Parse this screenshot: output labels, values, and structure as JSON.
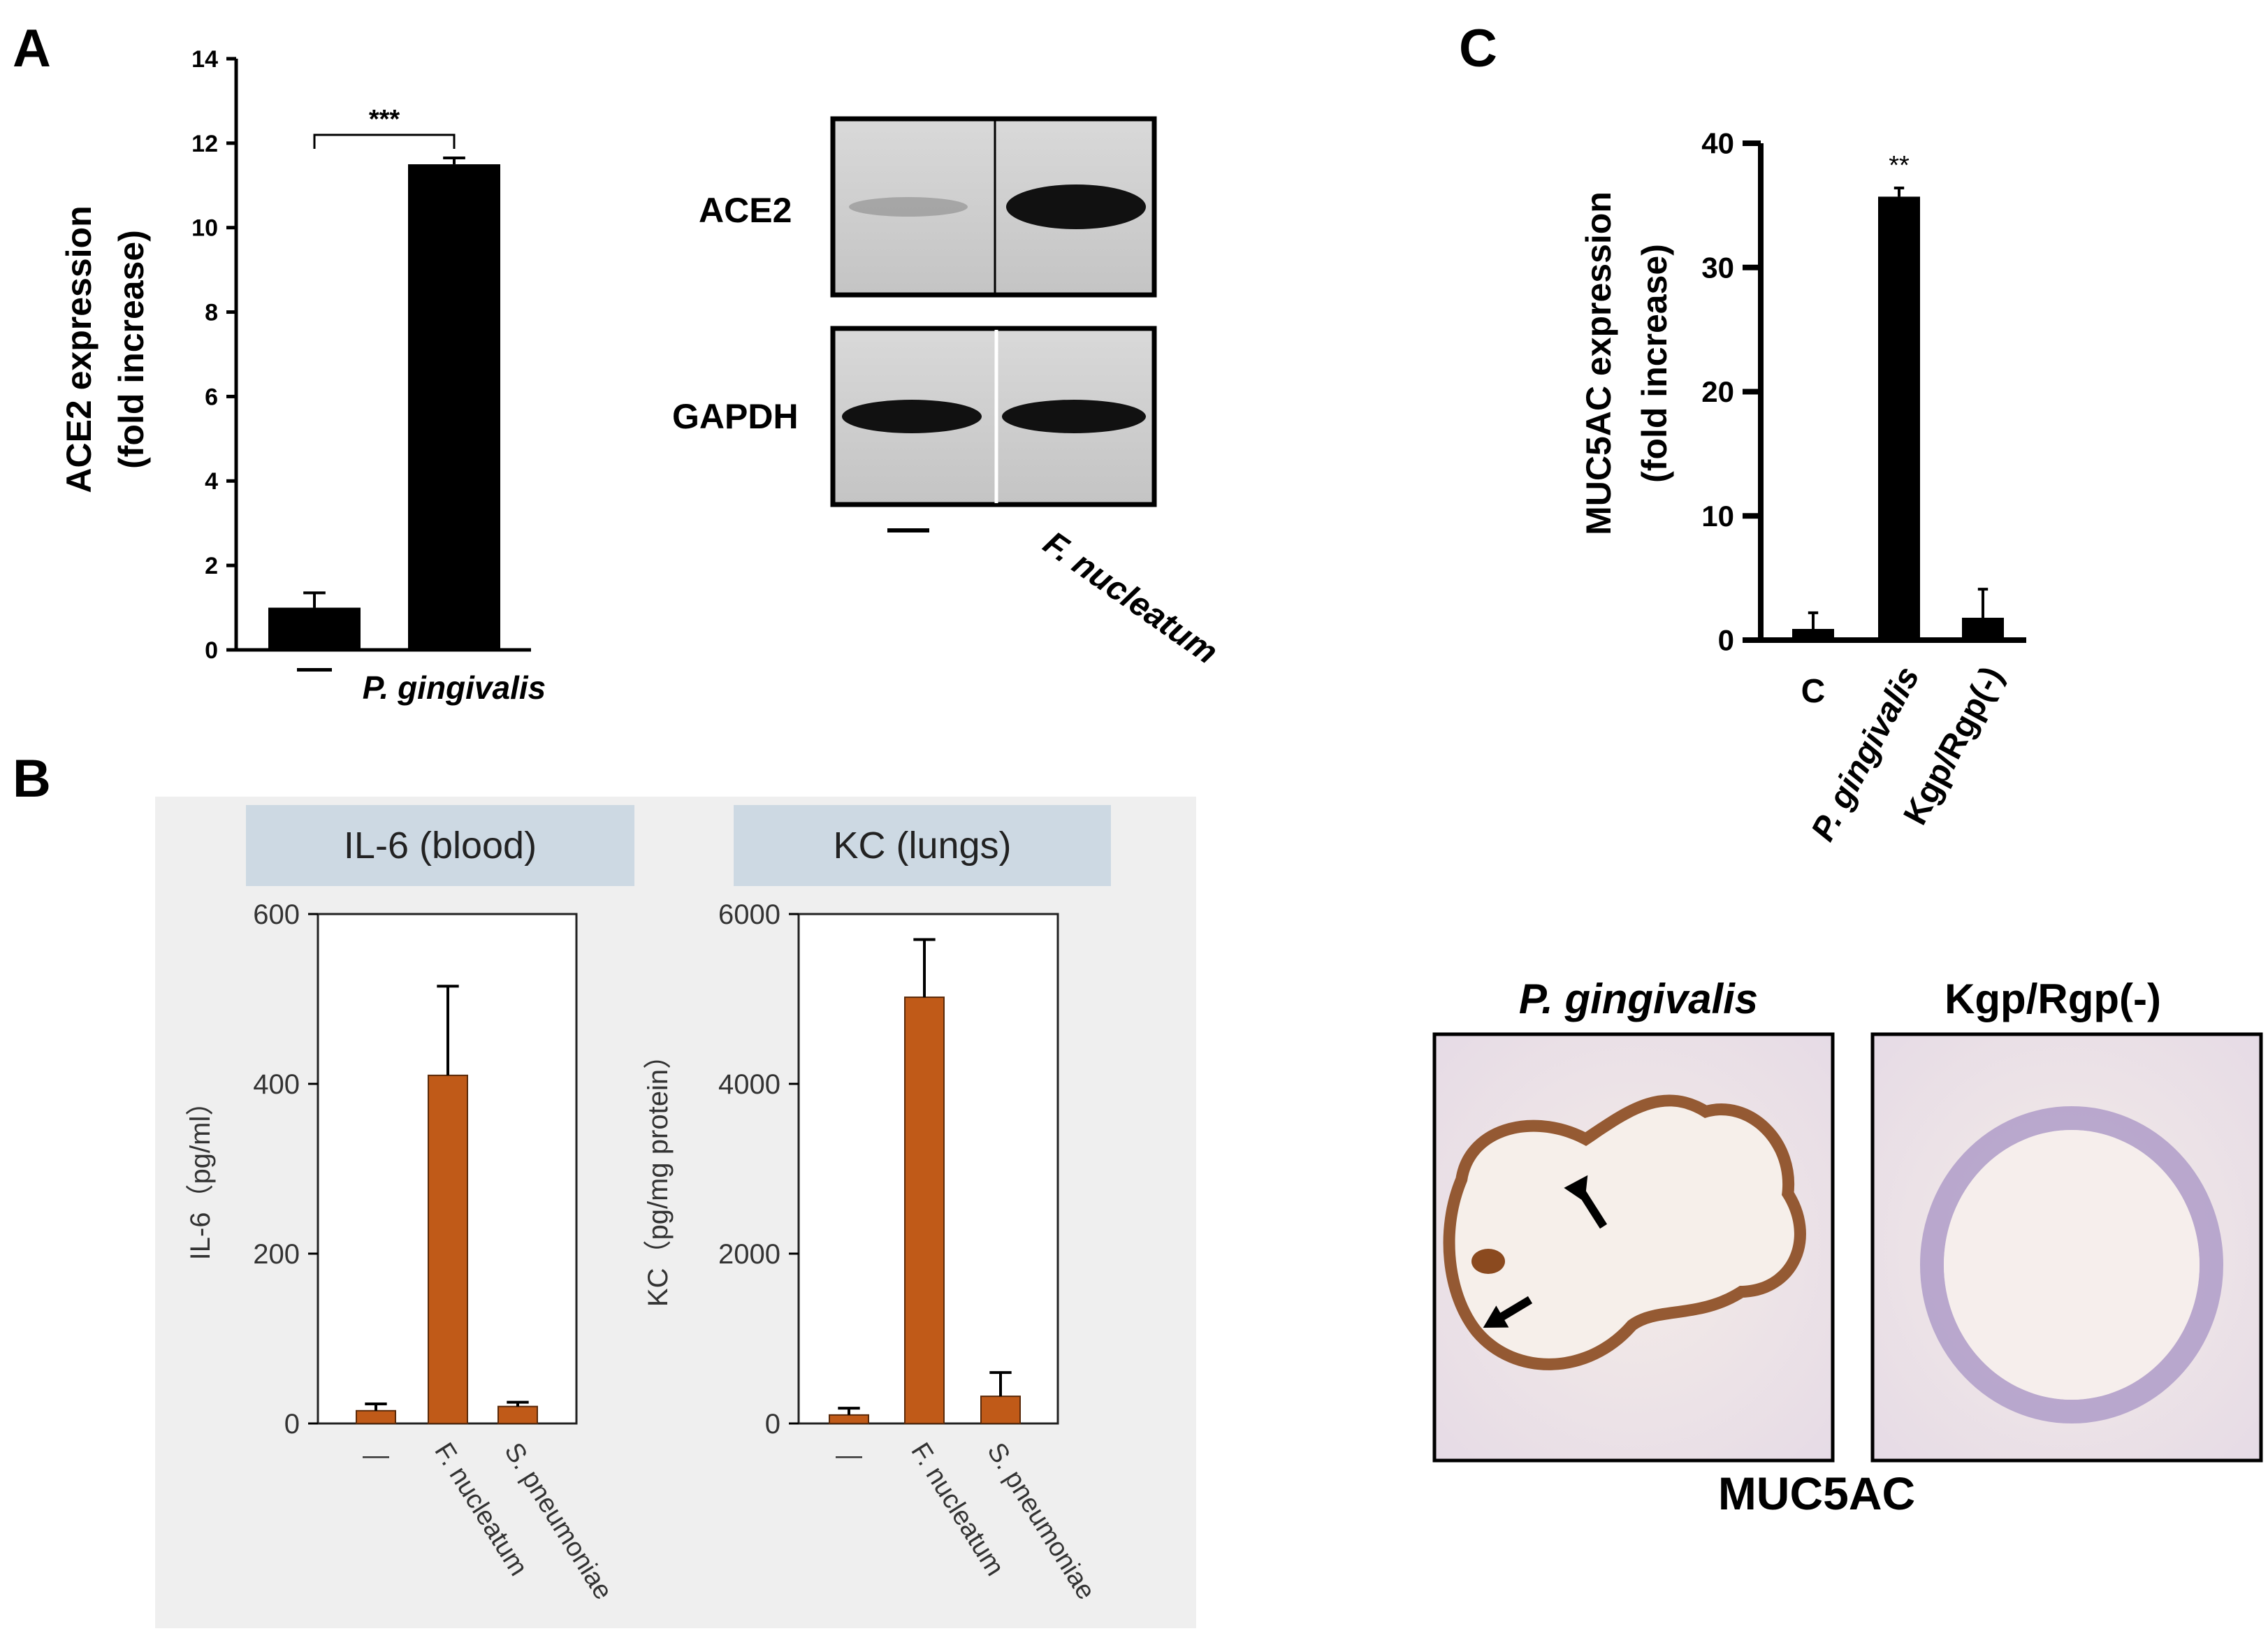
{
  "panels": {
    "A": {
      "letter": "A",
      "western_blot": {
        "bands": [
          "ACE2",
          "GAPDH"
        ],
        "lanes": [
          "—",
          "F. nucleatum"
        ]
      }
    },
    "B": {
      "letter": "B",
      "subpanels": [
        {
          "header": "IL-6 (blood)"
        },
        {
          "header": "KC (lungs)"
        }
      ]
    },
    "C": {
      "letter": "C",
      "histology": {
        "labels": [
          "P. gingivalis",
          "Kgp/Rgp(-)"
        ],
        "caption": "MUC5AC"
      }
    }
  },
  "chart_data": [
    {
      "id": "A-bar",
      "type": "bar",
      "categories": [
        "—",
        "P. gingivalis"
      ],
      "values": [
        1.0,
        11.5
      ],
      "errors": [
        0.35,
        0.15
      ],
      "ylabel": [
        "ACE2 expression",
        "(fold increase)"
      ],
      "ylim": [
        0,
        14
      ],
      "yticks": [
        0,
        2,
        4,
        6,
        8,
        10,
        12,
        14
      ],
      "significance": "***",
      "color": "#000000"
    },
    {
      "id": "B-il6",
      "type": "bar",
      "categories": [
        "—",
        "F. nucleatum",
        "S. pneumoniae"
      ],
      "values": [
        15,
        410,
        20
      ],
      "errors": [
        8,
        105,
        5
      ],
      "ylabel": "IL-6（pg/ml）",
      "ylim": [
        0,
        600
      ],
      "yticks": [
        0,
        200,
        400,
        600
      ],
      "color": "#c05a18"
    },
    {
      "id": "B-kc",
      "type": "bar",
      "categories": [
        "—",
        "F. nucleatum",
        "S. pneumoniae"
      ],
      "values": [
        100,
        5020,
        320
      ],
      "errors": [
        80,
        680,
        280
      ],
      "ylabel": "KC（pg/mg protein）",
      "ylim": [
        0,
        6000
      ],
      "yticks": [
        0,
        2000,
        4000,
        6000
      ],
      "color": "#c05a18"
    },
    {
      "id": "C-bar",
      "type": "bar",
      "categories": [
        "C",
        "P. gingivalis",
        "Kgp/Rgp(-)"
      ],
      "values": [
        0.9,
        35.7,
        1.8
      ],
      "errors": [
        1.3,
        0.7,
        2.3
      ],
      "ylabel": [
        "MUC5AC  expression",
        "(fold increase)"
      ],
      "ylim": [
        0,
        40
      ],
      "yticks": [
        0,
        10,
        20,
        30,
        40
      ],
      "significance": "**",
      "color": "#000000"
    }
  ]
}
